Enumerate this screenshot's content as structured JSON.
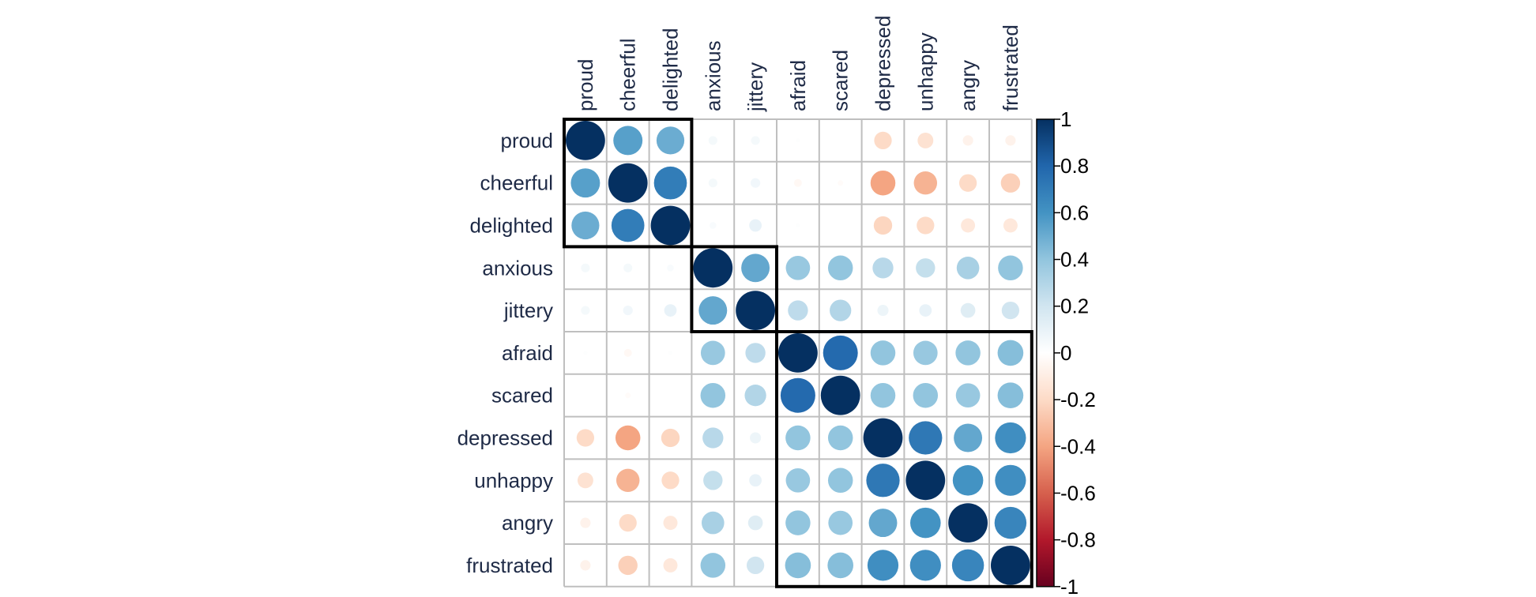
{
  "chart_data": {
    "type": "heatmap",
    "method": "circle",
    "variables": [
      "proud",
      "cheerful",
      "delighted",
      "anxious",
      "jittery",
      "afraid",
      "scared",
      "depressed",
      "unhappy",
      "angry",
      "frustrated"
    ],
    "matrix": [
      [
        1.0,
        0.55,
        0.5,
        0.05,
        0.05,
        0.01,
        0.0,
        -0.2,
        -0.16,
        -0.07,
        -0.07
      ],
      [
        0.55,
        1.0,
        0.7,
        0.05,
        0.06,
        -0.04,
        -0.02,
        -0.4,
        -0.35,
        -0.2,
        -0.24
      ],
      [
        0.5,
        0.7,
        1.0,
        0.03,
        0.1,
        0.01,
        0.0,
        -0.22,
        -0.2,
        -0.13,
        -0.13
      ],
      [
        0.05,
        0.05,
        0.03,
        1.0,
        0.52,
        0.38,
        0.4,
        0.28,
        0.24,
        0.33,
        0.4
      ],
      [
        0.05,
        0.06,
        0.1,
        0.52,
        1.0,
        0.26,
        0.3,
        0.08,
        0.1,
        0.14,
        0.2
      ],
      [
        0.01,
        -0.04,
        0.01,
        0.38,
        0.26,
        1.0,
        0.78,
        0.4,
        0.38,
        0.4,
        0.43
      ],
      [
        0.0,
        -0.02,
        0.0,
        0.4,
        0.3,
        0.78,
        1.0,
        0.4,
        0.4,
        0.38,
        0.43
      ],
      [
        -0.2,
        -0.4,
        -0.22,
        0.28,
        0.08,
        0.4,
        0.4,
        1.0,
        0.72,
        0.52,
        0.62
      ],
      [
        -0.16,
        -0.35,
        -0.2,
        0.24,
        0.1,
        0.38,
        0.4,
        0.72,
        1.0,
        0.6,
        0.62
      ],
      [
        -0.07,
        -0.2,
        -0.13,
        0.33,
        0.14,
        0.4,
        0.38,
        0.52,
        0.6,
        1.0,
        0.66
      ],
      [
        -0.07,
        -0.24,
        -0.13,
        0.4,
        0.2,
        0.43,
        0.43,
        0.62,
        0.62,
        0.66,
        1.0
      ]
    ],
    "clusters": [
      [
        0,
        2
      ],
      [
        3,
        4
      ],
      [
        5,
        10
      ]
    ],
    "colorbar": {
      "range": [
        -1,
        1
      ],
      "tick_labels": [
        "1",
        "0.8",
        "0.6",
        "0.4",
        "0.2",
        "0",
        "-0.2",
        "-0.4",
        "-0.6",
        "-0.8",
        "-1"
      ],
      "palette": [
        "#67001f",
        "#b2182b",
        "#d6604d",
        "#f4a582",
        "#fddbc7",
        "#ffffff",
        "#d1e5f0",
        "#92c5de",
        "#4393c3",
        "#2166ac",
        "#053061"
      ]
    }
  }
}
